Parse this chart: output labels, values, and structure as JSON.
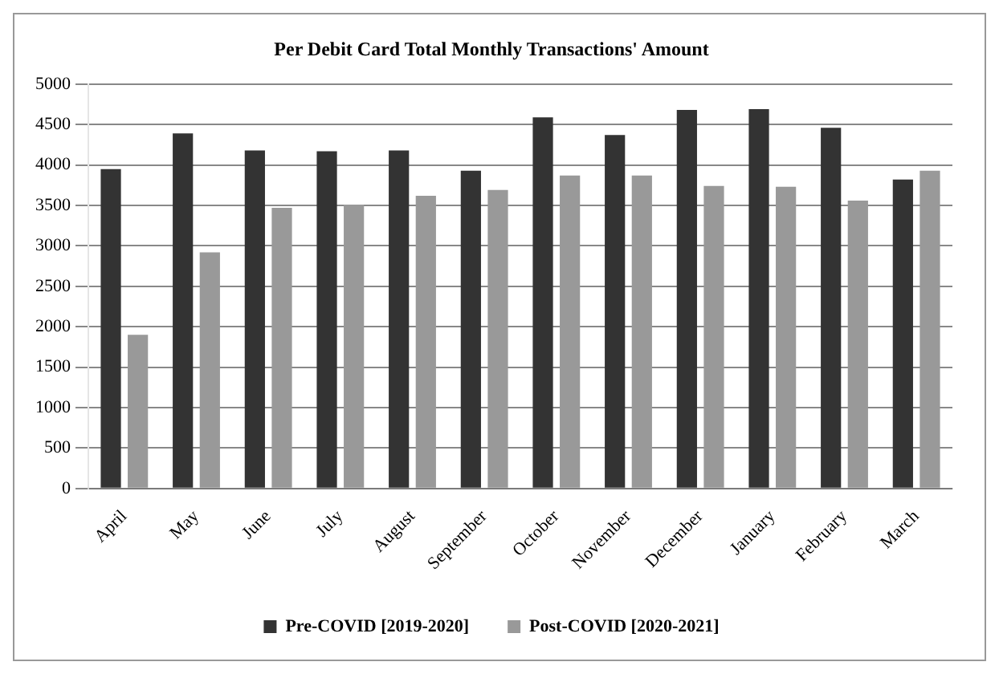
{
  "chart_data": {
    "type": "bar",
    "title": "Per Debit Card Total Monthly Transactions' Amount",
    "categories": [
      "April",
      "May",
      "June",
      "July",
      "August",
      "September",
      "October",
      "November",
      "December",
      "January",
      "February",
      "March"
    ],
    "series": [
      {
        "name": "Pre-COVID [2019-2020]",
        "color": "#333333",
        "values": [
          3950,
          4390,
          4180,
          4170,
          4180,
          3930,
          4590,
          4370,
          4680,
          4690,
          4460,
          3820
        ]
      },
      {
        "name": "Post-COVID [2020-2021]",
        "color": "#999999",
        "values": [
          1900,
          2920,
          3470,
          3510,
          3620,
          3690,
          3870,
          3870,
          3740,
          3730,
          3560,
          3930
        ]
      }
    ],
    "ylim": [
      0,
      5000
    ],
    "yticks": [
      0,
      500,
      1000,
      1500,
      2000,
      2500,
      3000,
      3500,
      4000,
      4500,
      5000
    ],
    "grid": "y",
    "legend": "bottom"
  }
}
